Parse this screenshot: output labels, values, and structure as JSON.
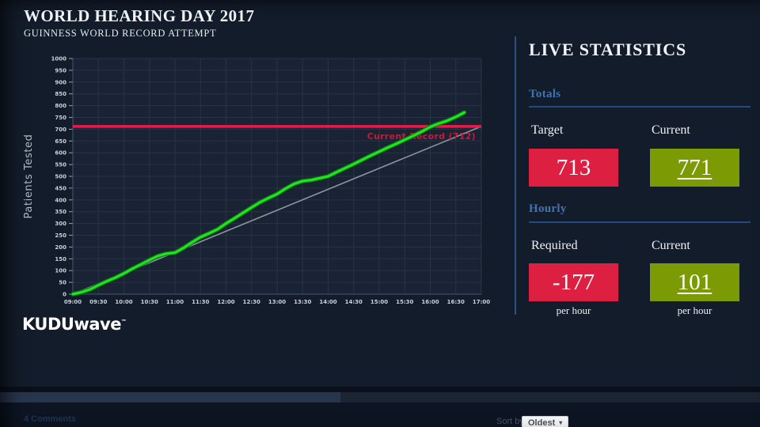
{
  "header": {
    "title": "WORLD HEARING DAY 2017",
    "subtitle": "GUINNESS WORLD RECORD ATTEMPT"
  },
  "chart_data": {
    "type": "line",
    "title": "",
    "xlabel": "",
    "ylabel": "Patients Tested",
    "ylim": [
      0,
      1000
    ],
    "ytick_step": 50,
    "grid": true,
    "legend": "none",
    "x_ticks": [
      "09:00",
      "09:30",
      "10:00",
      "10:30",
      "11:00",
      "11:30",
      "12:00",
      "12:30",
      "13:00",
      "13:30",
      "14:00",
      "14:30",
      "15:00",
      "15:30",
      "16:00",
      "16:30",
      "17:00"
    ],
    "series": [
      {
        "name": "patients-tested-actual",
        "color": "#22e522",
        "points": [
          [
            "09:00",
            0
          ],
          [
            "09:10",
            8
          ],
          [
            "09:20",
            20
          ],
          [
            "09:30",
            38
          ],
          [
            "09:40",
            55
          ],
          [
            "09:50",
            70
          ],
          [
            "10:00",
            88
          ],
          [
            "10:10",
            108
          ],
          [
            "10:20",
            126
          ],
          [
            "10:30",
            145
          ],
          [
            "10:40",
            162
          ],
          [
            "10:50",
            172
          ],
          [
            "11:00",
            176
          ],
          [
            "11:10",
            196
          ],
          [
            "11:20",
            220
          ],
          [
            "11:30",
            242
          ],
          [
            "11:40",
            258
          ],
          [
            "11:50",
            275
          ],
          [
            "12:00",
            300
          ],
          [
            "12:10",
            322
          ],
          [
            "12:20",
            345
          ],
          [
            "12:30",
            368
          ],
          [
            "12:40",
            390
          ],
          [
            "12:50",
            408
          ],
          [
            "13:00",
            425
          ],
          [
            "13:10",
            448
          ],
          [
            "13:20",
            468
          ],
          [
            "13:30",
            480
          ],
          [
            "13:40",
            484
          ],
          [
            "13:50",
            492
          ],
          [
            "14:00",
            500
          ],
          [
            "14:10",
            518
          ],
          [
            "14:20",
            535
          ],
          [
            "14:30",
            552
          ],
          [
            "14:40",
            570
          ],
          [
            "14:50",
            588
          ],
          [
            "15:00",
            605
          ],
          [
            "15:10",
            622
          ],
          [
            "15:20",
            638
          ],
          [
            "15:30",
            655
          ],
          [
            "15:40",
            672
          ],
          [
            "15:50",
            690
          ],
          [
            "16:00",
            710
          ],
          [
            "16:10",
            724
          ],
          [
            "16:20",
            736
          ],
          [
            "16:30",
            752
          ],
          [
            "16:40",
            771
          ]
        ]
      },
      {
        "name": "target-pace",
        "color": "#8e93a0",
        "points": [
          [
            "09:00",
            0
          ],
          [
            "17:00",
            712
          ]
        ]
      },
      {
        "name": "current-record",
        "color": "#ed1948",
        "label": "Current Record (712)",
        "points": [
          [
            "09:00",
            712
          ],
          [
            "17:00",
            712
          ]
        ]
      }
    ]
  },
  "stats_panel": {
    "title": "LIVE STATISTICS",
    "sections": [
      {
        "label": "Totals",
        "cells": [
          {
            "label": "Target",
            "value": "713",
            "style": "red"
          },
          {
            "label": "Current",
            "value": "771",
            "style": "green",
            "underline": true
          }
        ]
      },
      {
        "label": "Hourly",
        "cells": [
          {
            "label": "Required",
            "value": "-177",
            "style": "red",
            "caption": "per hour"
          },
          {
            "label": "Current",
            "value": "101",
            "style": "green",
            "underline": true,
            "caption": "per hour"
          }
        ]
      }
    ]
  },
  "logo": {
    "brand_bold": "KUDU",
    "brand_light": "wave",
    "trademark": "™"
  },
  "comments_bar": {
    "count": "4 Comments",
    "sort_by": "Sort by",
    "sort_value": "Oldest",
    "caret": "▾"
  },
  "colors": {
    "background": "#131c2a",
    "accent_red": "#dd2042",
    "accent_green": "#7c9a04",
    "section_blue": "#3f74b3",
    "divider_blue": "#2b5187",
    "record_line_red": "#ed1948",
    "actual_line_green": "#22e522",
    "pace_line_gray": "#8e93a0"
  }
}
